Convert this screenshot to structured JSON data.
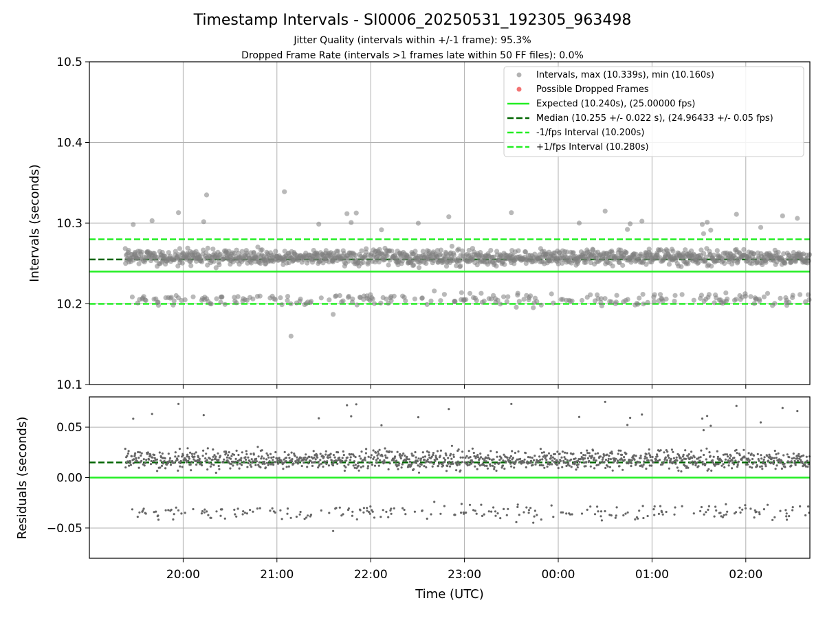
{
  "colors": {
    "point": "#808080",
    "dropped": "#f05050",
    "expected": "#22ee22",
    "median": "#006400",
    "bounds": "#22ee22",
    "grid": "#b0b0b0"
  },
  "chart_data": [
    {
      "type": "scatter",
      "title": "Timestamp Intervals - SI0006_20250531_192305_963498",
      "subtitle_1": "Jitter Quality (intervals within +/-1 frame): 95.3%",
      "subtitle_2": "Dropped Frame Rate (intervals >1 frames late within 50 FF files): 0.0%",
      "xlabel": "",
      "ylabel": "Intervals (seconds)",
      "xlim": [
        "19:00",
        "02:41"
      ],
      "ylim": [
        10.1,
        10.5
      ],
      "x_ticks": [
        "20:00",
        "21:00",
        "22:00",
        "23:00",
        "00:00",
        "01:00",
        "02:00"
      ],
      "y_ticks": [
        "10.1",
        "10.2",
        "10.3",
        "10.4",
        "10.5"
      ],
      "grid": true,
      "legend_position": "top-right",
      "data_time_range": [
        "19:23",
        "02:41"
      ],
      "series": [
        {
          "name": "Intervals, max (10.339s), min (10.160s)",
          "kind": "points",
          "max": 10.339,
          "min": 10.16,
          "main_band": [
            10.245,
            10.27
          ],
          "lower_band": [
            10.195,
            10.215
          ],
          "outliers": [
            [
              19.95,
              10.313
            ],
            [
              20.25,
              10.335
            ],
            [
              21.08,
              10.339
            ],
            [
              21.15,
              10.16
            ],
            [
              21.6,
              10.187
            ],
            [
              23.5,
              10.313
            ],
            [
              0.5,
              10.315
            ],
            [
              1.55,
              10.287
            ],
            [
              1.9,
              10.311
            ],
            [
              2.55,
              10.306
            ]
          ]
        },
        {
          "name": "Possible Dropped Frames",
          "kind": "points",
          "values": []
        },
        {
          "name": "Expected (10.240s), (25.00000 fps)",
          "kind": "hline",
          "y": 10.24
        },
        {
          "name": "Median (10.255 +/- 0.022 s), (24.96433 +/- 0.05 fps)",
          "kind": "hline",
          "y": 10.255
        },
        {
          "name": "-1/fps Interval (10.200s)",
          "kind": "hline",
          "y": 10.2
        },
        {
          "name": "+1/fps Interval (10.280s)",
          "kind": "hline",
          "y": 10.28
        }
      ]
    },
    {
      "type": "scatter",
      "xlabel": "Time (UTC)",
      "ylabel": "Residuals (seconds)",
      "xlim": [
        "19:00",
        "02:41"
      ],
      "ylim": [
        -0.08,
        0.08
      ],
      "x_ticks": [
        "20:00",
        "21:00",
        "22:00",
        "23:00",
        "00:00",
        "01:00",
        "02:00"
      ],
      "y_ticks": [
        "−0.05",
        "0.00",
        "0.05"
      ],
      "grid": true,
      "series": [
        {
          "kind": "points",
          "main_band": [
            0.005,
            0.03
          ],
          "lower_band": [
            -0.045,
            -0.025
          ]
        },
        {
          "kind": "hline",
          "y": 0.0,
          "color": "expected"
        },
        {
          "kind": "hline",
          "y": 0.015,
          "color": "median"
        }
      ]
    }
  ]
}
